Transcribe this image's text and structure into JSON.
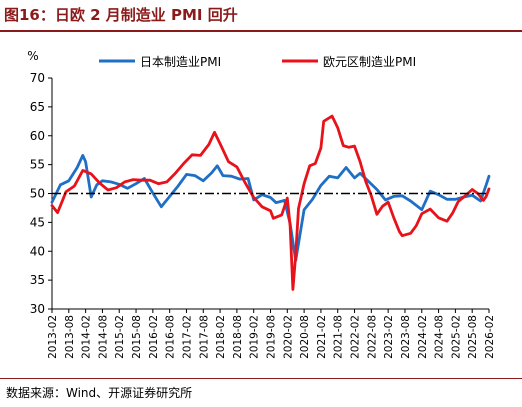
{
  "figure": {
    "title": "图16：日欧 2 月制造业 PMI 回升",
    "source": "数据来源：Wind、开源证券研究所"
  },
  "colors": {
    "japan": "#1f6fc5",
    "eurozone": "#e8121a",
    "title": "#8b1a1a",
    "reference_line": "#000000"
  },
  "chart_data": {
    "type": "line",
    "ylabel": "%",
    "ylim": [
      30,
      70
    ],
    "yticks": [
      30,
      35,
      40,
      45,
      50,
      55,
      60,
      65,
      70
    ],
    "xlim": [
      "2013-02",
      "2026-02"
    ],
    "xticks": [
      "2013-02",
      "2013-08",
      "2014-02",
      "2014-08",
      "2015-02",
      "2015-08",
      "2016-02",
      "2016-08",
      "2017-02",
      "2017-08",
      "2018-02",
      "2018-08",
      "2019-02",
      "2019-08",
      "2020-02",
      "2020-08",
      "2021-02",
      "2021-08",
      "2022-02",
      "2022-08",
      "2023-02",
      "2023-08",
      "2024-02",
      "2024-08",
      "2025-02",
      "2025-08",
      "2026-02"
    ],
    "reference_line": 50,
    "legend_position": "top",
    "grid": false,
    "series": [
      {
        "name": "日本制造业PMI",
        "color": "#1f6fc5",
        "points": [
          [
            "2013-02",
            48.5
          ],
          [
            "2013-05",
            51.5
          ],
          [
            "2013-08",
            52.2
          ],
          [
            "2013-11",
            54.5
          ],
          [
            "2014-01",
            56.6
          ],
          [
            "2014-02",
            55.5
          ],
          [
            "2014-04",
            49.4
          ],
          [
            "2014-06",
            51.5
          ],
          [
            "2014-08",
            52.2
          ],
          [
            "2014-11",
            52.0
          ],
          [
            "2015-02",
            51.6
          ],
          [
            "2015-05",
            50.9
          ],
          [
            "2015-08",
            51.7
          ],
          [
            "2015-11",
            52.6
          ],
          [
            "2016-02",
            50.1
          ],
          [
            "2016-05",
            47.7
          ],
          [
            "2016-08",
            49.5
          ],
          [
            "2016-11",
            51.3
          ],
          [
            "2017-02",
            53.3
          ],
          [
            "2017-05",
            53.1
          ],
          [
            "2017-08",
            52.2
          ],
          [
            "2017-11",
            53.6
          ],
          [
            "2018-01",
            54.8
          ],
          [
            "2018-03",
            53.1
          ],
          [
            "2018-06",
            53.0
          ],
          [
            "2018-09",
            52.5
          ],
          [
            "2018-12",
            52.6
          ],
          [
            "2019-02",
            48.9
          ],
          [
            "2019-05",
            49.8
          ],
          [
            "2019-08",
            49.3
          ],
          [
            "2019-10",
            48.4
          ],
          [
            "2020-01",
            48.8
          ],
          [
            "2020-03",
            44.8
          ],
          [
            "2020-05",
            38.4
          ],
          [
            "2020-08",
            47.2
          ],
          [
            "2020-11",
            49.0
          ],
          [
            "2021-02",
            51.4
          ],
          [
            "2021-05",
            53.0
          ],
          [
            "2021-08",
            52.7
          ],
          [
            "2021-11",
            54.5
          ],
          [
            "2022-02",
            52.7
          ],
          [
            "2022-04",
            53.5
          ],
          [
            "2022-07",
            52.1
          ],
          [
            "2022-10",
            50.7
          ],
          [
            "2023-01",
            48.9
          ],
          [
            "2023-04",
            49.5
          ],
          [
            "2023-07",
            49.6
          ],
          [
            "2023-10",
            48.7
          ],
          [
            "2024-02",
            47.2
          ],
          [
            "2024-05",
            50.4
          ],
          [
            "2024-08",
            49.8
          ],
          [
            "2024-11",
            49.0
          ],
          [
            "2025-02",
            49.0
          ],
          [
            "2025-05",
            49.4
          ],
          [
            "2025-08",
            49.7
          ],
          [
            "2025-11",
            48.7
          ],
          [
            "2026-01",
            51.5
          ],
          [
            "2026-02",
            53.0
          ]
        ]
      },
      {
        "name": "欧元区制造业PMI",
        "color": "#e8121a",
        "points": [
          [
            "2013-02",
            47.9
          ],
          [
            "2013-04",
            46.7
          ],
          [
            "2013-07",
            50.3
          ],
          [
            "2013-10",
            51.3
          ],
          [
            "2014-01",
            54.0
          ],
          [
            "2014-04",
            53.4
          ],
          [
            "2014-07",
            51.8
          ],
          [
            "2014-10",
            50.6
          ],
          [
            "2015-01",
            51.0
          ],
          [
            "2015-04",
            52.0
          ],
          [
            "2015-07",
            52.4
          ],
          [
            "2015-10",
            52.3
          ],
          [
            "2016-01",
            52.3
          ],
          [
            "2016-04",
            51.7
          ],
          [
            "2016-07",
            52.0
          ],
          [
            "2016-10",
            53.5
          ],
          [
            "2017-01",
            55.2
          ],
          [
            "2017-04",
            56.7
          ],
          [
            "2017-07",
            56.6
          ],
          [
            "2017-10",
            58.5
          ],
          [
            "2017-12",
            60.6
          ],
          [
            "2018-02",
            58.6
          ],
          [
            "2018-05",
            55.5
          ],
          [
            "2018-08",
            54.6
          ],
          [
            "2018-11",
            51.8
          ],
          [
            "2019-02",
            49.3
          ],
          [
            "2019-05",
            47.7
          ],
          [
            "2019-08",
            47.0
          ],
          [
            "2019-09",
            45.7
          ],
          [
            "2019-12",
            46.3
          ],
          [
            "2020-02",
            49.2
          ],
          [
            "2020-03",
            44.5
          ],
          [
            "2020-04",
            33.4
          ],
          [
            "2020-05",
            39.4
          ],
          [
            "2020-06",
            47.4
          ],
          [
            "2020-08",
            51.7
          ],
          [
            "2020-10",
            54.8
          ],
          [
            "2020-12",
            55.2
          ],
          [
            "2021-02",
            57.9
          ],
          [
            "2021-03",
            62.5
          ],
          [
            "2021-06",
            63.4
          ],
          [
            "2021-08",
            61.4
          ],
          [
            "2021-10",
            58.3
          ],
          [
            "2021-12",
            58.0
          ],
          [
            "2022-02",
            58.2
          ],
          [
            "2022-04",
            55.5
          ],
          [
            "2022-06",
            52.1
          ],
          [
            "2022-08",
            49.6
          ],
          [
            "2022-10",
            46.4
          ],
          [
            "2022-12",
            47.8
          ],
          [
            "2023-02",
            48.5
          ],
          [
            "2023-04",
            45.8
          ],
          [
            "2023-06",
            43.4
          ],
          [
            "2023-07",
            42.7
          ],
          [
            "2023-10",
            43.1
          ],
          [
            "2023-12",
            44.4
          ],
          [
            "2024-02",
            46.5
          ],
          [
            "2024-05",
            47.3
          ],
          [
            "2024-08",
            45.8
          ],
          [
            "2024-11",
            45.2
          ],
          [
            "2025-01",
            46.6
          ],
          [
            "2025-03",
            48.6
          ],
          [
            "2025-05",
            49.4
          ],
          [
            "2025-08",
            50.7
          ],
          [
            "2025-10",
            50.0
          ],
          [
            "2025-12",
            48.8
          ],
          [
            "2026-01",
            49.5
          ],
          [
            "2026-02",
            50.8
          ]
        ]
      }
    ]
  }
}
